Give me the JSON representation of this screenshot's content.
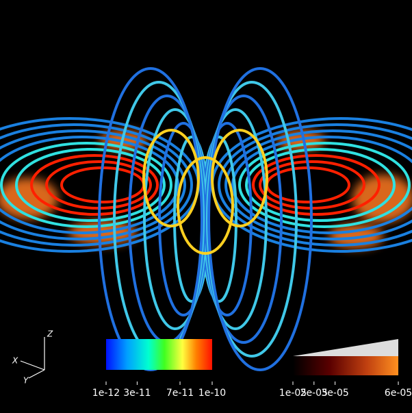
{
  "orientation_axes": {
    "x": "X",
    "y": "Y",
    "z": "Z"
  },
  "color_legend": {
    "lim": [
      1e-12,
      1e-10
    ],
    "ticks": [
      {
        "value": 1e-12,
        "label": "1e-12"
      },
      {
        "value": 3e-11,
        "label": "3e-11"
      },
      {
        "value": 7e-11,
        "label": "7e-11"
      },
      {
        "value": 1e-10,
        "label": "1e-10"
      }
    ]
  },
  "opacity_legend": {
    "lim": [
      1e-05,
      6e-05
    ],
    "ticks": [
      {
        "value": 1e-05,
        "label": "1e-05"
      },
      {
        "value": 2e-05,
        "label": "2e-05"
      },
      {
        "value": 3e-05,
        "label": "3e-05"
      },
      {
        "value": 6e-05,
        "label": "6e-05"
      }
    ]
  }
}
